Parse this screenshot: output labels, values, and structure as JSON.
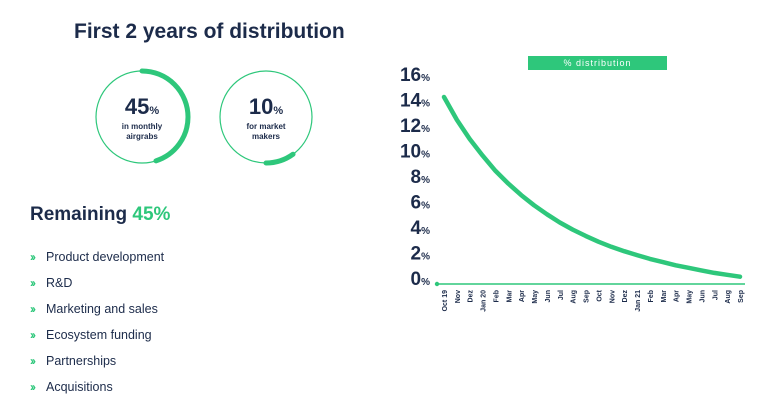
{
  "header": {
    "title": "First 2 years of distribution"
  },
  "stats": [
    {
      "value": "45",
      "unit": "%",
      "caption": "in monthly airgrabs",
      "fraction": 0.45
    },
    {
      "value": "10",
      "unit": "%",
      "caption": "for market makers",
      "fraction": 0.1
    }
  ],
  "remaining": {
    "label": "Remaining",
    "value": "45%"
  },
  "uses": [
    "Product development",
    "R&D",
    "Marketing and sales",
    "Ecosystem funding",
    "Partnerships",
    "Acquisitions"
  ],
  "colors": {
    "accent": "#2ec77b",
    "ring_track": "#2ec77b",
    "text": "#1c2b4a"
  },
  "chart_data": {
    "type": "line",
    "legend": "% distribution",
    "legend_position": "top-right",
    "categories": [
      "Oct 19",
      "Nov",
      "Dez",
      "Jan 20",
      "Feb",
      "Mar",
      "Apr",
      "May",
      "Jun",
      "Jul",
      "Aug",
      "Sep",
      "Oct",
      "Nov",
      "Dez",
      "Jan 21",
      "Feb",
      "Mar",
      "Apr",
      "May",
      "Jun",
      "Jul",
      "Aug",
      "Sep"
    ],
    "series": [
      {
        "name": "% distribution",
        "values": [
          14.2,
          12.4,
          10.9,
          9.6,
          8.4,
          7.4,
          6.5,
          5.7,
          5.0,
          4.35,
          3.8,
          3.3,
          2.85,
          2.45,
          2.1,
          1.8,
          1.5,
          1.25,
          1.0,
          0.8,
          0.6,
          0.4,
          0.25,
          0.1
        ]
      }
    ],
    "ylim": [
      0,
      16
    ],
    "yticks": [
      0,
      2,
      4,
      6,
      8,
      10,
      12,
      14,
      16
    ],
    "ytick_suffix": "%",
    "xlabel": "",
    "ylabel": "",
    "grid": false
  }
}
